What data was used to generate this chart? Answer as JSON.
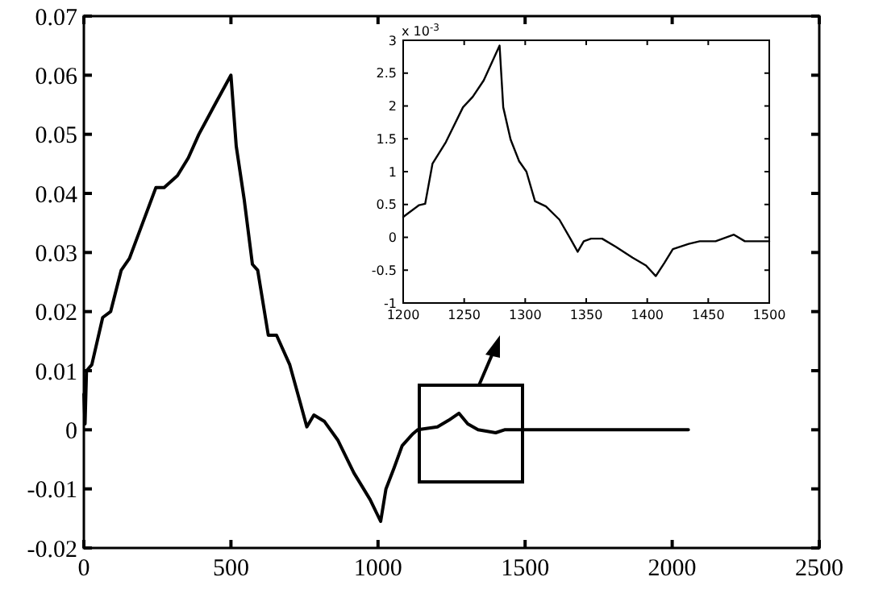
{
  "chart_data": [
    {
      "type": "line",
      "x": [
        0,
        4,
        9,
        27,
        64,
        91,
        127,
        155,
        200,
        245,
        273,
        318,
        355,
        391,
        445,
        500,
        518,
        545,
        573,
        591,
        627,
        655,
        700,
        736,
        758,
        782,
        818,
        864,
        918,
        973,
        1009,
        1027,
        1055,
        1082,
        1118,
        1135,
        1202,
        1240,
        1275,
        1305,
        1340,
        1400,
        1430,
        2055
      ],
      "series": [
        {
          "color": "#000000",
          "values": [
            0.006,
            0.001,
            0.01,
            0.011,
            0.019,
            0.02,
            0.027,
            0.029,
            0.035,
            0.041,
            0.041,
            0.043,
            0.046,
            0.05,
            0.055,
            0.06,
            0.048,
            0.039,
            0.028,
            0.027,
            0.016,
            0.016,
            0.011,
            0.0045,
            0.0005,
            0.0025,
            0.0014,
            -0.0018,
            -0.0073,
            -0.0118,
            -0.0155,
            -0.01,
            -0.0064,
            -0.0027,
            -0.0007,
            0,
            0.0005,
            0.0016,
            0.0028,
            0.001,
            0,
            -0.0005,
            0,
            0
          ]
        }
      ],
      "xlim": [
        0,
        2500
      ],
      "xticks": [
        0,
        500,
        1000,
        1500,
        2000,
        2500
      ],
      "ylim": [
        -0.02,
        0.07
      ],
      "yticks": [
        -0.02,
        -0.01,
        0,
        0.01,
        0.02,
        0.03,
        0.04,
        0.05,
        0.06,
        0.07
      ],
      "grid": false
    },
    {
      "type": "line",
      "x": [
        1200,
        1213,
        1218,
        1224,
        1235,
        1249,
        1257,
        1266,
        1279,
        1282,
        1288,
        1295,
        1301,
        1308,
        1317,
        1328,
        1337,
        1343,
        1348,
        1354,
        1363,
        1374,
        1388,
        1399,
        1407,
        1414,
        1421,
        1434,
        1443,
        1456,
        1471,
        1480,
        1500
      ],
      "series": [
        {
          "color": "#000000",
          "values": [
            0.31,
            0.49,
            0.51,
            1.12,
            1.45,
            1.98,
            2.14,
            2.39,
            2.92,
            1.98,
            1.49,
            1.16,
            1.0,
            0.55,
            0.47,
            0.27,
            -0.02,
            -0.22,
            -0.06,
            -0.02,
            -0.02,
            -0.14,
            -0.31,
            -0.43,
            -0.59,
            -0.39,
            -0.18,
            -0.1,
            -0.06,
            -0.06,
            0.04,
            -0.06,
            -0.06
          ]
        }
      ],
      "xlim": [
        1200,
        1500
      ],
      "xticks": [
        1200,
        1250,
        1300,
        1350,
        1400,
        1450,
        1500
      ],
      "ylim": [
        -1,
        3
      ],
      "yticks": [
        -1,
        -0.5,
        0,
        0.5,
        1,
        1.5,
        2,
        2.5,
        3
      ],
      "annotations": [
        "x 10$^{-3}$"
      ],
      "grid": false
    }
  ]
}
